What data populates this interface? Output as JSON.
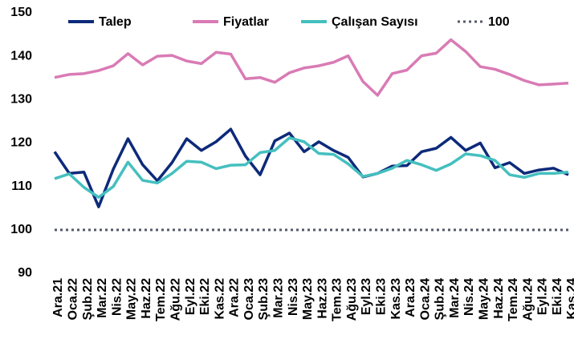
{
  "chart_data": {
    "type": "line",
    "categories": [
      "Ara.21",
      "Oca.22",
      "Şub.22",
      "Mar.22",
      "Nis.22",
      "May.22",
      "Haz.22",
      "Tem.22",
      "Ağu.22",
      "Eyl.22",
      "Eki.22",
      "Kas.22",
      "Ara.22",
      "Oca.23",
      "Şub.23",
      "Mar.23",
      "Nis.23",
      "May.23",
      "Haz.23",
      "Tem.23",
      "Ağu.23",
      "Eyl.23",
      "Eki.23",
      "Kas.23",
      "Ara.23",
      "Oca.24",
      "Şub.24",
      "Mar.24",
      "Nis.24",
      "May.24",
      "Haz.24",
      "Tem.24",
      "Ağu.24",
      "Eyl.24",
      "Eki.24",
      "Kas.24"
    ],
    "series": [
      {
        "name": "Talep",
        "color": "#0d2a7a",
        "values": [
          118,
          113,
          113.3,
          105.3,
          114,
          121,
          115,
          111.3,
          115.5,
          121,
          118.3,
          120.3,
          123.2,
          117,
          112.7,
          120.5,
          122.3,
          118,
          120.3,
          118.3,
          116.7,
          112.2,
          113,
          114.7,
          114.8,
          118,
          118.8,
          121.3,
          118.3,
          120,
          114.3,
          115.5,
          113,
          113.8,
          114.2,
          112.7
        ]
      },
      {
        "name": "Fiyatlar",
        "color": "#d97bb5",
        "values": [
          135.1,
          135.8,
          136,
          136.7,
          137.8,
          140.6,
          138,
          140,
          140.2,
          138.9,
          138.3,
          140.9,
          140.5,
          134.8,
          135.1,
          134,
          136.2,
          137.3,
          137.8,
          138.6,
          140.1,
          134.2,
          131,
          136,
          136.8,
          140.1,
          140.7,
          143.8,
          141.1,
          137.6,
          137,
          135.8,
          134.4,
          133.4,
          133.6,
          133.8
        ]
      },
      {
        "name": "Çalışan Sayısı",
        "color": "#45bfbf",
        "values": [
          111.8,
          112.9,
          109.8,
          107.5,
          110,
          115.6,
          111.4,
          110.8,
          113,
          115.8,
          115.6,
          114.1,
          114.9,
          115,
          117.8,
          118.3,
          121.2,
          120.3,
          117.6,
          117.4,
          115.2,
          112.3,
          113,
          114.2,
          116,
          115,
          113.7,
          115.2,
          117.5,
          117.1,
          116,
          112.7,
          112.1,
          113,
          113,
          113.3
        ]
      }
    ],
    "reference_lines": [
      {
        "name": "100",
        "value": 100,
        "color": "#555a6a",
        "style": "dotted"
      }
    ],
    "ylim": [
      90,
      150
    ],
    "yticks": [
      90,
      100,
      110,
      120,
      130,
      140,
      150
    ],
    "grid": false,
    "legend": "top"
  }
}
